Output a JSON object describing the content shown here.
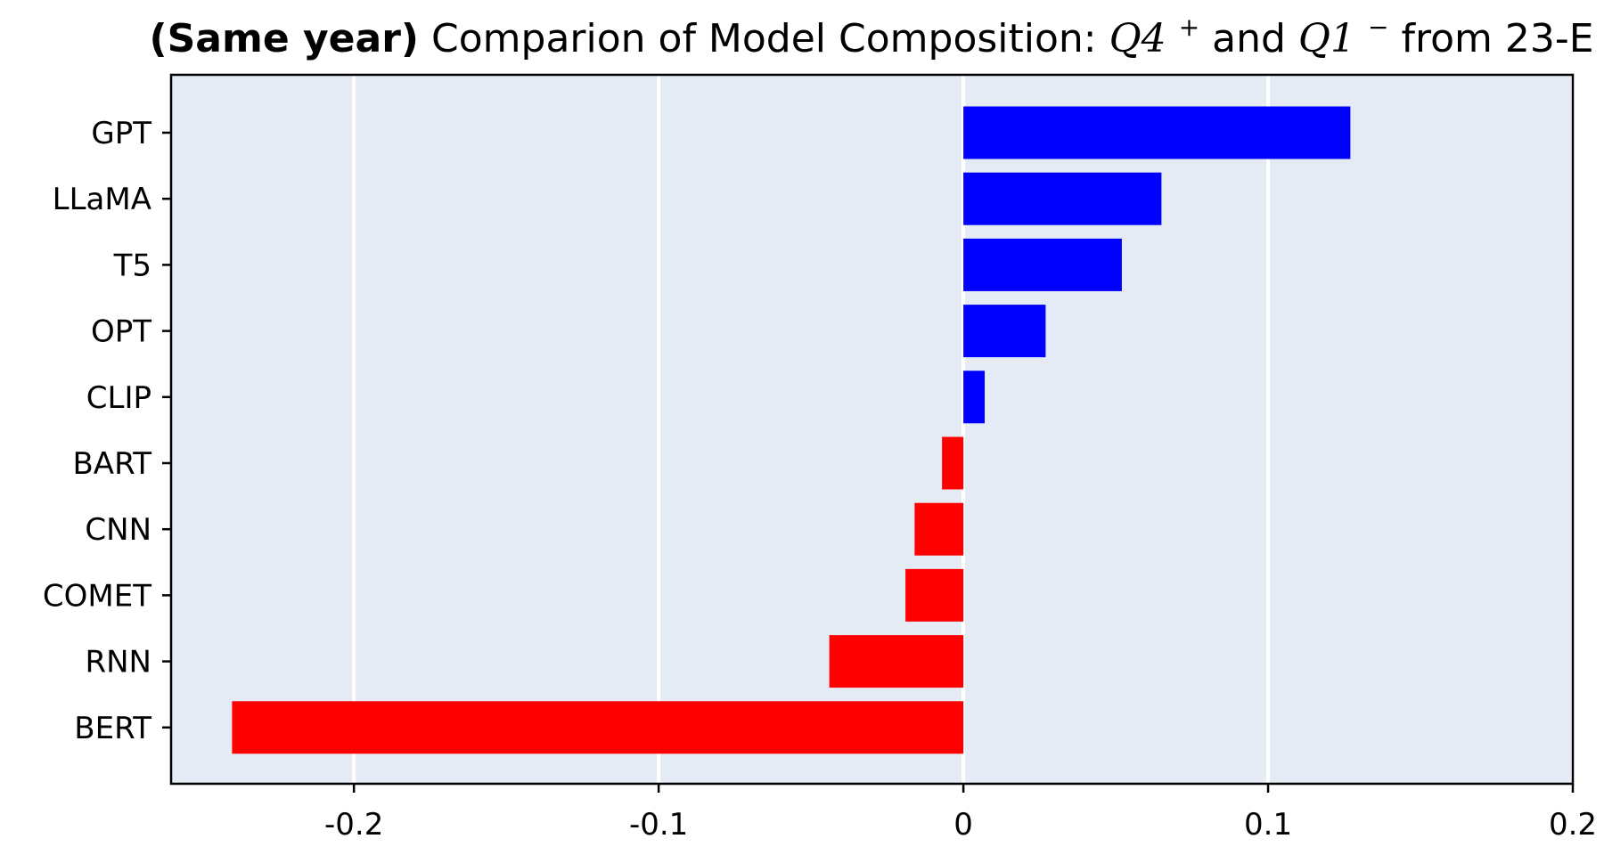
{
  "chart_data": {
    "type": "bar",
    "orientation": "horizontal",
    "title": {
      "bold": "(Same year)",
      "text1": " Comparion of Model Composition: ",
      "q4": "Q4",
      "q4_sup": "+",
      "text2": " and ",
      "q1": "Q1",
      "q1_sup": "−",
      "text3": " from 23-E"
    },
    "xlabel": "",
    "ylabel": "",
    "xlim": [
      -0.26,
      0.2
    ],
    "xticks": [
      -0.2,
      -0.1,
      0,
      0.1,
      0.2
    ],
    "xtick_labels": [
      "-0.2",
      "-0.1",
      "0",
      "0.1",
      "0.2"
    ],
    "categories": [
      "GPT",
      "LLaMA",
      "T5",
      "OPT",
      "CLIP",
      "BART",
      "CNN",
      "COMET",
      "RNN",
      "BERT"
    ],
    "values": [
      0.127,
      0.065,
      0.052,
      0.027,
      0.007,
      -0.007,
      -0.016,
      -0.019,
      -0.044,
      -0.24
    ],
    "colors": {
      "positive": "#0000ff",
      "negative": "#ff0000",
      "background": "#e5ebf5",
      "grid": "#ffffff"
    },
    "grid": true
  }
}
